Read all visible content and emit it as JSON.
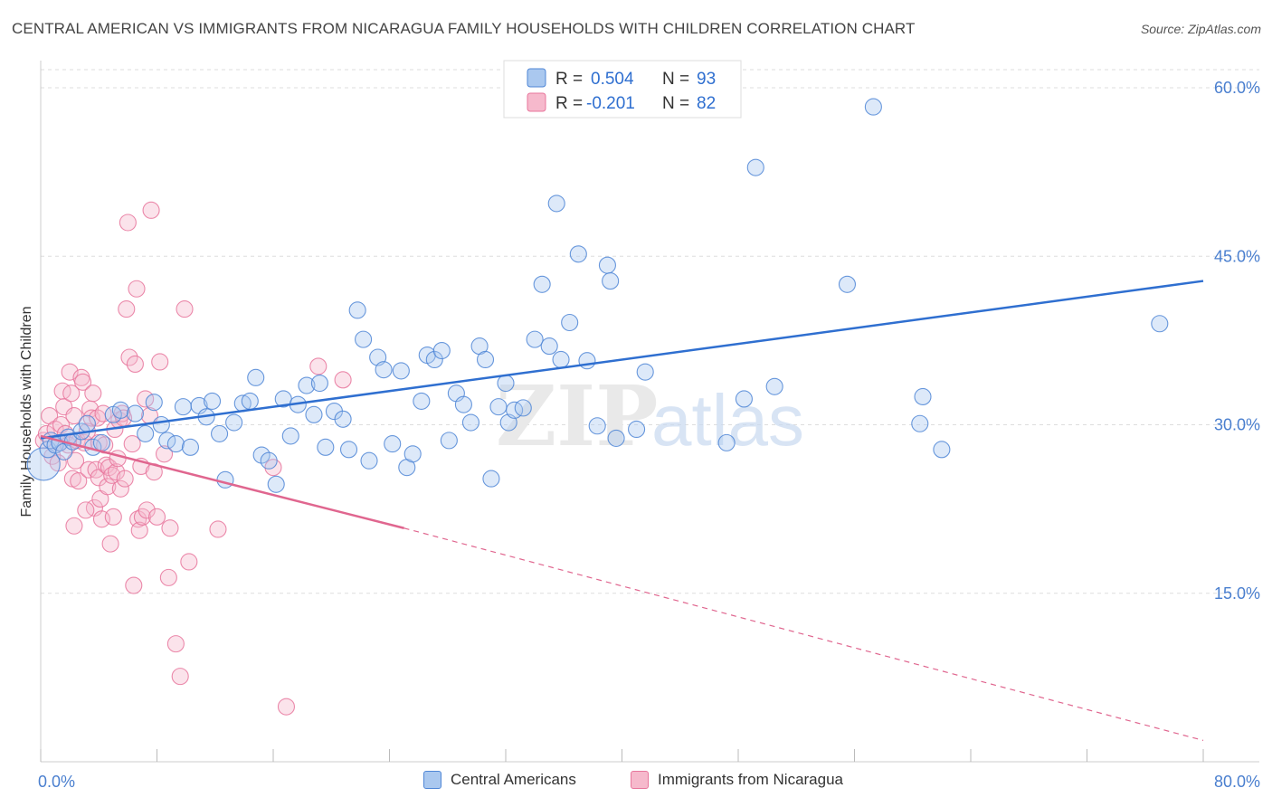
{
  "title": "CENTRAL AMERICAN VS IMMIGRANTS FROM NICARAGUA FAMILY HOUSEHOLDS WITH CHILDREN CORRELATION CHART",
  "source": "Source: ZipAtlas.com",
  "watermark": {
    "zip": "ZIP",
    "atlas": "atlas"
  },
  "colors": {
    "blue": "#4f86d6",
    "blue_fill": "#aac8ef",
    "blue_line": "#2f6fd0",
    "pink": "#e8769c",
    "pink_fill": "#f6b9cc",
    "pink_line": "#e0668f",
    "axis_text": "#4a7fcf",
    "grid": "#dddddd"
  },
  "legend": {
    "rows": [
      {
        "r_label": "R = ",
        "r_value": "0.504",
        "n_label": "N = ",
        "n_value": "93",
        "series": "blue"
      },
      {
        "r_label": "R = ",
        "r_value": "-0.201",
        "n_label": "N = ",
        "n_value": "82",
        "series": "pink"
      }
    ]
  },
  "chart_data": {
    "type": "scatter",
    "title": "CENTRAL AMERICAN VS IMMIGRANTS FROM NICARAGUA FAMILY HOUSEHOLDS WITH CHILDREN CORRELATION CHART",
    "xlabel": "",
    "ylabel": "Family Households with Children",
    "xlim": [
      0,
      80
    ],
    "ylim": [
      0,
      64
    ],
    "x_tick_labels": [
      "0.0%",
      "80.0%"
    ],
    "y_ticks": [
      15,
      30,
      45,
      60
    ],
    "y_tick_labels": [
      "15.0%",
      "30.0%",
      "45.0%",
      "60.0%"
    ],
    "grid": true,
    "legend_position": "top-center",
    "series": [
      {
        "name": "Central Americans",
        "color": "#4f86d6",
        "trend": {
          "x": [
            0,
            80
          ],
          "y": [
            28.8,
            42.8
          ],
          "style": "solid"
        },
        "points": [
          [
            0.2,
            26.5
          ],
          [
            0.5,
            27.8
          ],
          [
            0.7,
            28.6
          ],
          [
            1.0,
            28.2
          ],
          [
            1.3,
            28.4
          ],
          [
            1.6,
            27.6
          ],
          [
            1.9,
            28.9
          ],
          [
            2.2,
            28.5
          ],
          [
            2.8,
            29.4
          ],
          [
            3.2,
            30.1
          ],
          [
            3.6,
            28.0
          ],
          [
            4.2,
            28.4
          ],
          [
            5.0,
            30.9
          ],
          [
            5.5,
            31.3
          ],
          [
            6.5,
            31.0
          ],
          [
            7.2,
            29.2
          ],
          [
            7.8,
            32.0
          ],
          [
            8.3,
            30.0
          ],
          [
            8.7,
            28.6
          ],
          [
            9.3,
            28.3
          ],
          [
            9.8,
            31.6
          ],
          [
            10.3,
            28.0
          ],
          [
            10.9,
            31.7
          ],
          [
            11.4,
            30.7
          ],
          [
            11.8,
            32.1
          ],
          [
            12.3,
            29.2
          ],
          [
            12.7,
            25.1
          ],
          [
            13.3,
            30.2
          ],
          [
            13.9,
            31.9
          ],
          [
            14.4,
            32.1
          ],
          [
            14.8,
            34.2
          ],
          [
            15.2,
            27.3
          ],
          [
            15.7,
            26.8
          ],
          [
            16.2,
            24.7
          ],
          [
            16.7,
            32.3
          ],
          [
            17.2,
            29.0
          ],
          [
            17.7,
            31.8
          ],
          [
            18.3,
            33.5
          ],
          [
            18.8,
            30.9
          ],
          [
            19.2,
            33.7
          ],
          [
            19.6,
            28.0
          ],
          [
            20.2,
            31.2
          ],
          [
            20.8,
            30.5
          ],
          [
            21.2,
            27.8
          ],
          [
            21.8,
            40.2
          ],
          [
            22.2,
            37.6
          ],
          [
            22.6,
            26.8
          ],
          [
            23.2,
            36.0
          ],
          [
            23.6,
            34.9
          ],
          [
            24.2,
            28.3
          ],
          [
            24.8,
            34.8
          ],
          [
            25.2,
            26.2
          ],
          [
            25.6,
            27.4
          ],
          [
            26.2,
            32.1
          ],
          [
            26.6,
            36.2
          ],
          [
            27.1,
            35.8
          ],
          [
            27.6,
            36.6
          ],
          [
            28.1,
            28.6
          ],
          [
            28.6,
            32.8
          ],
          [
            29.1,
            31.8
          ],
          [
            29.6,
            30.2
          ],
          [
            30.2,
            37.0
          ],
          [
            30.6,
            35.8
          ],
          [
            31.0,
            25.2
          ],
          [
            31.5,
            31.6
          ],
          [
            32.0,
            33.7
          ],
          [
            32.2,
            30.2
          ],
          [
            32.6,
            31.3
          ],
          [
            33.2,
            31.5
          ],
          [
            34.0,
            37.6
          ],
          [
            34.5,
            42.5
          ],
          [
            35.0,
            37.0
          ],
          [
            35.5,
            49.7
          ],
          [
            35.8,
            35.8
          ],
          [
            36.4,
            39.1
          ],
          [
            37.0,
            45.2
          ],
          [
            37.6,
            35.7
          ],
          [
            38.3,
            29.9
          ],
          [
            39.0,
            44.2
          ],
          [
            39.2,
            42.8
          ],
          [
            39.6,
            28.8
          ],
          [
            41.0,
            29.6
          ],
          [
            41.6,
            34.7
          ],
          [
            47.2,
            28.4
          ],
          [
            48.4,
            32.3
          ],
          [
            49.2,
            52.9
          ],
          [
            50.5,
            33.4
          ],
          [
            55.5,
            42.5
          ],
          [
            57.3,
            58.3
          ],
          [
            60.5,
            30.1
          ],
          [
            60.7,
            32.5
          ],
          [
            62.0,
            27.8
          ],
          [
            77.0,
            39.0
          ]
        ]
      },
      {
        "name": "Immigrants from Nicaragua",
        "color": "#e8769c",
        "trend": {
          "x": [
            0,
            25
          ],
          "y": [
            29.0,
            20.8
          ],
          "style": "solid",
          "extended_x": [
            25,
            80
          ],
          "extended_y": [
            20.8,
            1.9
          ],
          "extended_style": "dashed"
        },
        "points": [
          [
            0.2,
            28.6
          ],
          [
            0.4,
            29.2
          ],
          [
            0.6,
            30.8
          ],
          [
            0.8,
            27.2
          ],
          [
            1.0,
            29.6
          ],
          [
            1.2,
            26.6
          ],
          [
            1.3,
            28.4
          ],
          [
            1.4,
            30.0
          ],
          [
            1.5,
            33.0
          ],
          [
            1.6,
            31.6
          ],
          [
            1.7,
            29.2
          ],
          [
            1.9,
            28.2
          ],
          [
            2.0,
            34.7
          ],
          [
            2.1,
            32.8
          ],
          [
            2.2,
            25.2
          ],
          [
            2.3,
            30.8
          ],
          [
            2.3,
            21.0
          ],
          [
            2.4,
            26.8
          ],
          [
            2.5,
            28.6
          ],
          [
            2.6,
            25.0
          ],
          [
            2.8,
            34.2
          ],
          [
            2.9,
            33.8
          ],
          [
            3.0,
            28.4
          ],
          [
            3.2,
            29.4
          ],
          [
            3.3,
            26.0
          ],
          [
            3.4,
            31.4
          ],
          [
            3.5,
            30.6
          ],
          [
            3.6,
            32.8
          ],
          [
            3.7,
            22.6
          ],
          [
            3.8,
            26.0
          ],
          [
            3.9,
            30.6
          ],
          [
            4.0,
            28.4
          ],
          [
            4.0,
            25.3
          ],
          [
            4.1,
            23.4
          ],
          [
            4.2,
            21.6
          ],
          [
            4.4,
            28.2
          ],
          [
            4.5,
            26.4
          ],
          [
            4.6,
            24.5
          ],
          [
            4.7,
            26.2
          ],
          [
            4.8,
            19.4
          ],
          [
            4.9,
            25.5
          ],
          [
            5.0,
            21.8
          ],
          [
            5.1,
            29.6
          ],
          [
            5.2,
            25.8
          ],
          [
            5.3,
            27.0
          ],
          [
            5.4,
            30.4
          ],
          [
            5.5,
            24.3
          ],
          [
            5.6,
            31.0
          ],
          [
            5.7,
            30.6
          ],
          [
            5.8,
            25.2
          ],
          [
            5.9,
            40.3
          ],
          [
            6.0,
            48.0
          ],
          [
            6.1,
            36.0
          ],
          [
            6.3,
            28.3
          ],
          [
            6.4,
            15.7
          ],
          [
            6.5,
            35.4
          ],
          [
            6.6,
            42.1
          ],
          [
            6.7,
            21.6
          ],
          [
            6.8,
            20.6
          ],
          [
            6.9,
            26.3
          ],
          [
            7.0,
            21.8
          ],
          [
            7.2,
            32.3
          ],
          [
            7.3,
            22.4
          ],
          [
            7.5,
            30.8
          ],
          [
            7.6,
            49.1
          ],
          [
            7.8,
            25.8
          ],
          [
            8.0,
            21.8
          ],
          [
            8.2,
            35.6
          ],
          [
            8.5,
            27.4
          ],
          [
            8.8,
            16.4
          ],
          [
            8.9,
            20.8
          ],
          [
            9.3,
            10.5
          ],
          [
            9.6,
            7.6
          ],
          [
            9.9,
            40.3
          ],
          [
            10.2,
            17.8
          ],
          [
            12.2,
            20.7
          ],
          [
            16.0,
            26.2
          ],
          [
            16.9,
            4.9
          ],
          [
            19.1,
            35.2
          ],
          [
            20.8,
            34.0
          ],
          [
            4.3,
            31.0
          ],
          [
            3.1,
            22.4
          ]
        ]
      }
    ]
  }
}
